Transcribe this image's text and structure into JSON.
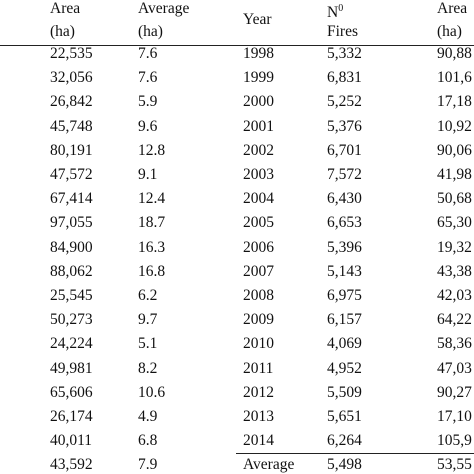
{
  "left_table": {
    "headers": [
      [
        "Area",
        "(ha)"
      ],
      [
        "Average",
        "(ha)"
      ]
    ],
    "rows": [
      [
        "22,535",
        "7.6"
      ],
      [
        "32,056",
        "7.6"
      ],
      [
        "26,842",
        "5.9"
      ],
      [
        "45,748",
        "9.6"
      ],
      [
        "80,191",
        "12.8"
      ],
      [
        "47,572",
        "9.1"
      ],
      [
        "67,414",
        "12.4"
      ],
      [
        "97,055",
        "18.7"
      ],
      [
        "84,900",
        "16.3"
      ],
      [
        "88,062",
        "16.8"
      ],
      [
        "25,545",
        "6.2"
      ],
      [
        "50,273",
        "9.7"
      ],
      [
        "24,224",
        "5.1"
      ],
      [
        "49,981",
        "8.2"
      ],
      [
        "65,606",
        "10.6"
      ],
      [
        "26,174",
        "4.9"
      ],
      [
        "40,011",
        "6.8"
      ],
      [
        "43,592",
        "7.9"
      ]
    ]
  },
  "right_table": {
    "headers": [
      [
        "Year"
      ],
      [
        "N",
        "Fires"
      ],
      [
        "Area",
        "(ha)"
      ]
    ],
    "superscript": "0",
    "rows": [
      [
        "1998",
        "5,332",
        "90,88"
      ],
      [
        "1999",
        "6,831",
        "101,6"
      ],
      [
        "2000",
        "5,252",
        "17,18"
      ],
      [
        "2001",
        "5,376",
        "10,92"
      ],
      [
        "2002",
        "6,701",
        "90,06"
      ],
      [
        "2003",
        "7,572",
        "41,98"
      ],
      [
        "2004",
        "6,430",
        "50,68"
      ],
      [
        "2005",
        "6,653",
        "65,30"
      ],
      [
        "2006",
        "5,396",
        "19,32"
      ],
      [
        "2007",
        "5,143",
        "43,38"
      ],
      [
        "2008",
        "6,975",
        "42,03"
      ],
      [
        "2009",
        "6,157",
        "64,22"
      ],
      [
        "2010",
        "4,069",
        "58,36"
      ],
      [
        "2011",
        "4,952",
        "47,03"
      ],
      [
        "2012",
        "5,509",
        "90,27"
      ],
      [
        "2013",
        "5,651",
        "17,10"
      ],
      [
        "2014",
        "6,264",
        "105,9"
      ],
      [
        "Average",
        "5,498",
        "53,55"
      ]
    ]
  }
}
